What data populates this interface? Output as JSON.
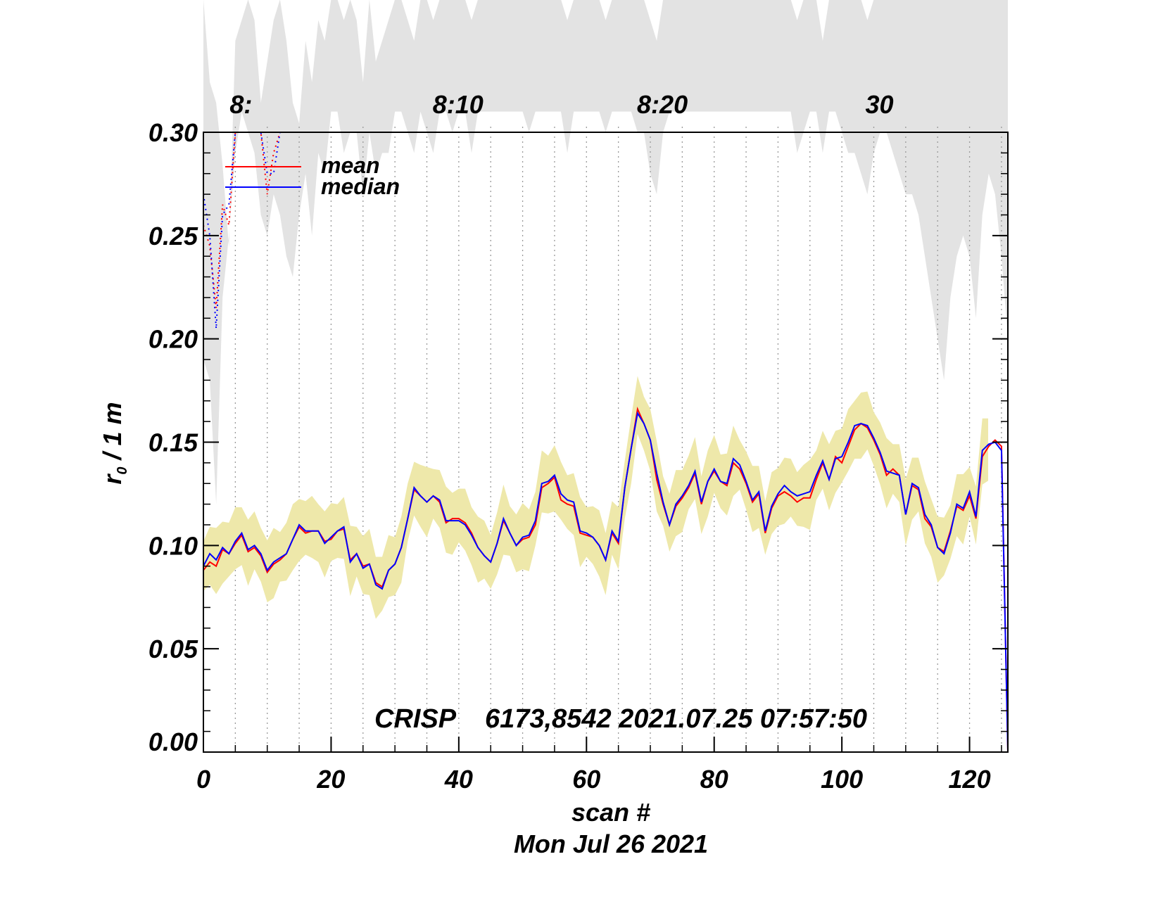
{
  "chart_data": {
    "type": "line",
    "xlabel": "scan #",
    "subtitle": "Mon Jul 26 2021",
    "ylabel_base": "r",
    "ylabel_sub": "0",
    "ylabel_rest": " / 1 m",
    "xlim": [
      0,
      126
    ],
    "ylim": [
      0.0,
      0.3
    ],
    "x_ticks": [
      0,
      20,
      40,
      60,
      80,
      100,
      120
    ],
    "y_ticks": [
      "0.00",
      "0.05",
      "0.10",
      "0.15",
      "0.20",
      "0.25",
      "0.30"
    ],
    "time_labels": [
      {
        "label": "8:10",
        "x": 39
      },
      {
        "label": "8:20",
        "x": 71
      },
      {
        "label": "30",
        "x": 105
      },
      {
        "label": "8:",
        "x": 5
      }
    ],
    "annotation": "CRISP    6173,8542 2021.07.25 07:57:50",
    "legend": {
      "placement": "top-left",
      "entries": [
        {
          "name": "mean",
          "color": "#ff0000"
        },
        {
          "name": "median",
          "color": "#0000ff"
        }
      ]
    },
    "grid": "vertical dotted lines",
    "colors": {
      "band": "#eee8aa",
      "upper_band": "#e3e3e3",
      "mean": "#ff0000",
      "median": "#0000ff"
    },
    "series": [
      {
        "name": "mean",
        "values": [
          0.088,
          0.092,
          0.09,
          0.098,
          0.096,
          0.101,
          0.105,
          0.097,
          0.099,
          0.095,
          0.087,
          0.091,
          0.093,
          0.096,
          0.103,
          0.109,
          0.106,
          0.107,
          0.107,
          0.102,
          0.103,
          0.107,
          0.108,
          0.093,
          0.096,
          0.09,
          0.091,
          0.082,
          0.08,
          0.088,
          0.091,
          0.099,
          0.113,
          0.127,
          0.124,
          0.121,
          0.124,
          0.121,
          0.111,
          0.113,
          0.113,
          0.111,
          0.106,
          0.099,
          0.095,
          0.092,
          0.101,
          0.112,
          0.106,
          0.1,
          0.103,
          0.104,
          0.11,
          0.128,
          0.13,
          0.133,
          0.122,
          0.12,
          0.119,
          0.106,
          0.105,
          0.104,
          0.1,
          0.093,
          0.106,
          0.101,
          0.128,
          0.147,
          0.166,
          0.159,
          0.151,
          0.132,
          0.12,
          0.11,
          0.119,
          0.123,
          0.128,
          0.135,
          0.12,
          0.131,
          0.136,
          0.131,
          0.129,
          0.14,
          0.137,
          0.13,
          0.121,
          0.125,
          0.106,
          0.118,
          0.124,
          0.126,
          0.124,
          0.121,
          0.123,
          0.123,
          0.132,
          0.14,
          0.132,
          0.143,
          0.14,
          0.148,
          0.156,
          0.159,
          0.157,
          0.151,
          0.144,
          0.134,
          0.137,
          0.134,
          0.115,
          0.129,
          0.127,
          0.113,
          0.109,
          0.099,
          0.097,
          0.107,
          0.119,
          0.117,
          0.124,
          0.113,
          0.143,
          0.148,
          0.151,
          0.148,
          0.0
        ]
      },
      {
        "name": "median",
        "values": [
          0.09,
          0.096,
          0.093,
          0.099,
          0.096,
          0.102,
          0.106,
          0.098,
          0.1,
          0.096,
          0.088,
          0.092,
          0.094,
          0.096,
          0.103,
          0.11,
          0.107,
          0.107,
          0.107,
          0.101,
          0.104,
          0.107,
          0.109,
          0.092,
          0.096,
          0.089,
          0.091,
          0.081,
          0.079,
          0.088,
          0.091,
          0.099,
          0.113,
          0.128,
          0.124,
          0.121,
          0.124,
          0.122,
          0.112,
          0.112,
          0.112,
          0.11,
          0.105,
          0.099,
          0.095,
          0.092,
          0.101,
          0.113,
          0.106,
          0.1,
          0.104,
          0.105,
          0.112,
          0.13,
          0.131,
          0.134,
          0.125,
          0.122,
          0.121,
          0.107,
          0.106,
          0.104,
          0.1,
          0.093,
          0.107,
          0.102,
          0.128,
          0.147,
          0.164,
          0.159,
          0.151,
          0.135,
          0.121,
          0.11,
          0.12,
          0.124,
          0.129,
          0.136,
          0.121,
          0.131,
          0.137,
          0.131,
          0.13,
          0.142,
          0.139,
          0.131,
          0.122,
          0.126,
          0.107,
          0.119,
          0.125,
          0.129,
          0.126,
          0.124,
          0.125,
          0.126,
          0.134,
          0.141,
          0.132,
          0.142,
          0.143,
          0.15,
          0.158,
          0.159,
          0.158,
          0.152,
          0.145,
          0.136,
          0.135,
          0.134,
          0.115,
          0.13,
          0.128,
          0.115,
          0.11,
          0.099,
          0.096,
          0.106,
          0.12,
          0.118,
          0.126,
          0.114,
          0.146,
          0.149,
          0.15,
          0.146,
          0.0
        ]
      }
    ],
    "band_lower_offset": 0.011,
    "band_upper_offset": 0.013,
    "upper_band_top": [
      0.32,
      0.28,
      0.27,
      0.24,
      0.2,
      0.3,
      0.31,
      0.32,
      0.31,
      0.27,
      0.29,
      0.31,
      0.32,
      0.3,
      0.27,
      0.26,
      0.3,
      0.28,
      0.31,
      0.3,
      0.32,
      0.32,
      0.31,
      0.32,
      0.31,
      0.28,
      0.32,
      0.29,
      0.3,
      0.31,
      0.32,
      0.32,
      0.31,
      0.3,
      0.32,
      0.32,
      0.31,
      0.32,
      0.32,
      0.32,
      0.32,
      0.32,
      0.31,
      0.32,
      0.32,
      0.32,
      0.32,
      0.32,
      0.32,
      0.32,
      0.32,
      0.32,
      0.32,
      0.32,
      0.32,
      0.32,
      0.32,
      0.31,
      0.32,
      0.32,
      0.32,
      0.32,
      0.32,
      0.31,
      0.32,
      0.32,
      0.32,
      0.32,
      0.32,
      0.32,
      0.31,
      0.3,
      0.32,
      0.32,
      0.32,
      0.32,
      0.32,
      0.32,
      0.32,
      0.32,
      0.32,
      0.32,
      0.32,
      0.32,
      0.32,
      0.32,
      0.32,
      0.32,
      0.32,
      0.32,
      0.32,
      0.32,
      0.32,
      0.31,
      0.32,
      0.32,
      0.32,
      0.3,
      0.32,
      0.32,
      0.32,
      0.32,
      0.32,
      0.32,
      0.31,
      0.32,
      0.32,
      0.32,
      0.32,
      0.32,
      0.32,
      0.32,
      0.32,
      0.32,
      0.32,
      0.32,
      0.32,
      0.32,
      0.32,
      0.32,
      0.32,
      0.32,
      0.32,
      0.32,
      0.32,
      0.32,
      0.32
    ],
    "upper_band_bottom": [
      0.19,
      0.18,
      0.12,
      0.22,
      0.25,
      0.29,
      0.31,
      0.3,
      0.29,
      0.26,
      0.25,
      0.27,
      0.26,
      0.24,
      0.23,
      0.26,
      0.28,
      0.25,
      0.29,
      0.28,
      0.31,
      0.31,
      0.29,
      0.3,
      0.3,
      0.27,
      0.3,
      0.28,
      0.29,
      0.29,
      0.31,
      0.31,
      0.3,
      0.29,
      0.31,
      0.3,
      0.29,
      0.31,
      0.31,
      0.3,
      0.31,
      0.31,
      0.29,
      0.31,
      0.31,
      0.31,
      0.31,
      0.31,
      0.31,
      0.31,
      0.31,
      0.3,
      0.31,
      0.31,
      0.31,
      0.31,
      0.31,
      0.29,
      0.31,
      0.31,
      0.31,
      0.31,
      0.31,
      0.3,
      0.31,
      0.31,
      0.31,
      0.31,
      0.3,
      0.3,
      0.28,
      0.27,
      0.3,
      0.31,
      0.31,
      0.31,
      0.31,
      0.31,
      0.31,
      0.31,
      0.31,
      0.31,
      0.31,
      0.31,
      0.31,
      0.31,
      0.31,
      0.31,
      0.31,
      0.31,
      0.31,
      0.31,
      0.31,
      0.29,
      0.3,
      0.31,
      0.31,
      0.29,
      0.31,
      0.31,
      0.3,
      0.29,
      0.29,
      0.28,
      0.27,
      0.29,
      0.3,
      0.3,
      0.29,
      0.28,
      0.27,
      0.27,
      0.26,
      0.24,
      0.22,
      0.2,
      0.18,
      0.22,
      0.24,
      0.25,
      0.24,
      0.21,
      0.26,
      0.28,
      0.27,
      0.24,
      0.2
    ],
    "dotted_mean_top": [
      0.255,
      0.245,
      0.215,
      0.265,
      0.255,
      0.3,
      0.3,
      0.3,
      0.3,
      0.3,
      0.27,
      0.29,
      0.3
    ],
    "dotted_median_top": [
      0.27,
      0.25,
      0.205,
      0.26,
      0.265,
      0.3,
      0.3,
      0.3,
      0.3,
      0.3,
      0.28,
      0.28,
      0.3
    ]
  }
}
